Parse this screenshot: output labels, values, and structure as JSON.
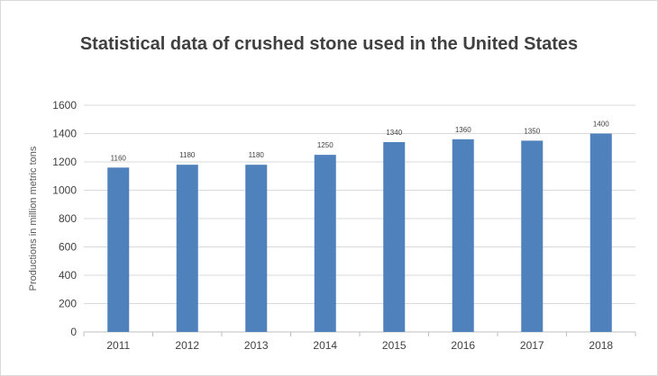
{
  "chart_data": {
    "type": "bar",
    "title": "Statistical data of crushed stone used in the United States",
    "xlabel": "",
    "ylabel": "Productions in million metric tons",
    "categories": [
      "2011",
      "2012",
      "2013",
      "2014",
      "2015",
      "2016",
      "2017",
      "2018"
    ],
    "values": [
      1160,
      1180,
      1180,
      1250,
      1340,
      1360,
      1350,
      1400
    ],
    "data_labels": [
      "1160",
      "1180",
      "1180",
      "1250",
      "1340",
      "1360",
      "1350",
      "1400"
    ],
    "ylim": [
      0,
      1600
    ],
    "yticks": [
      "0",
      "200",
      "400",
      "600",
      "800",
      "1000",
      "1200",
      "1400",
      "1600"
    ],
    "grid": true,
    "legend": "none",
    "bar_color": "#4f81bd"
  }
}
